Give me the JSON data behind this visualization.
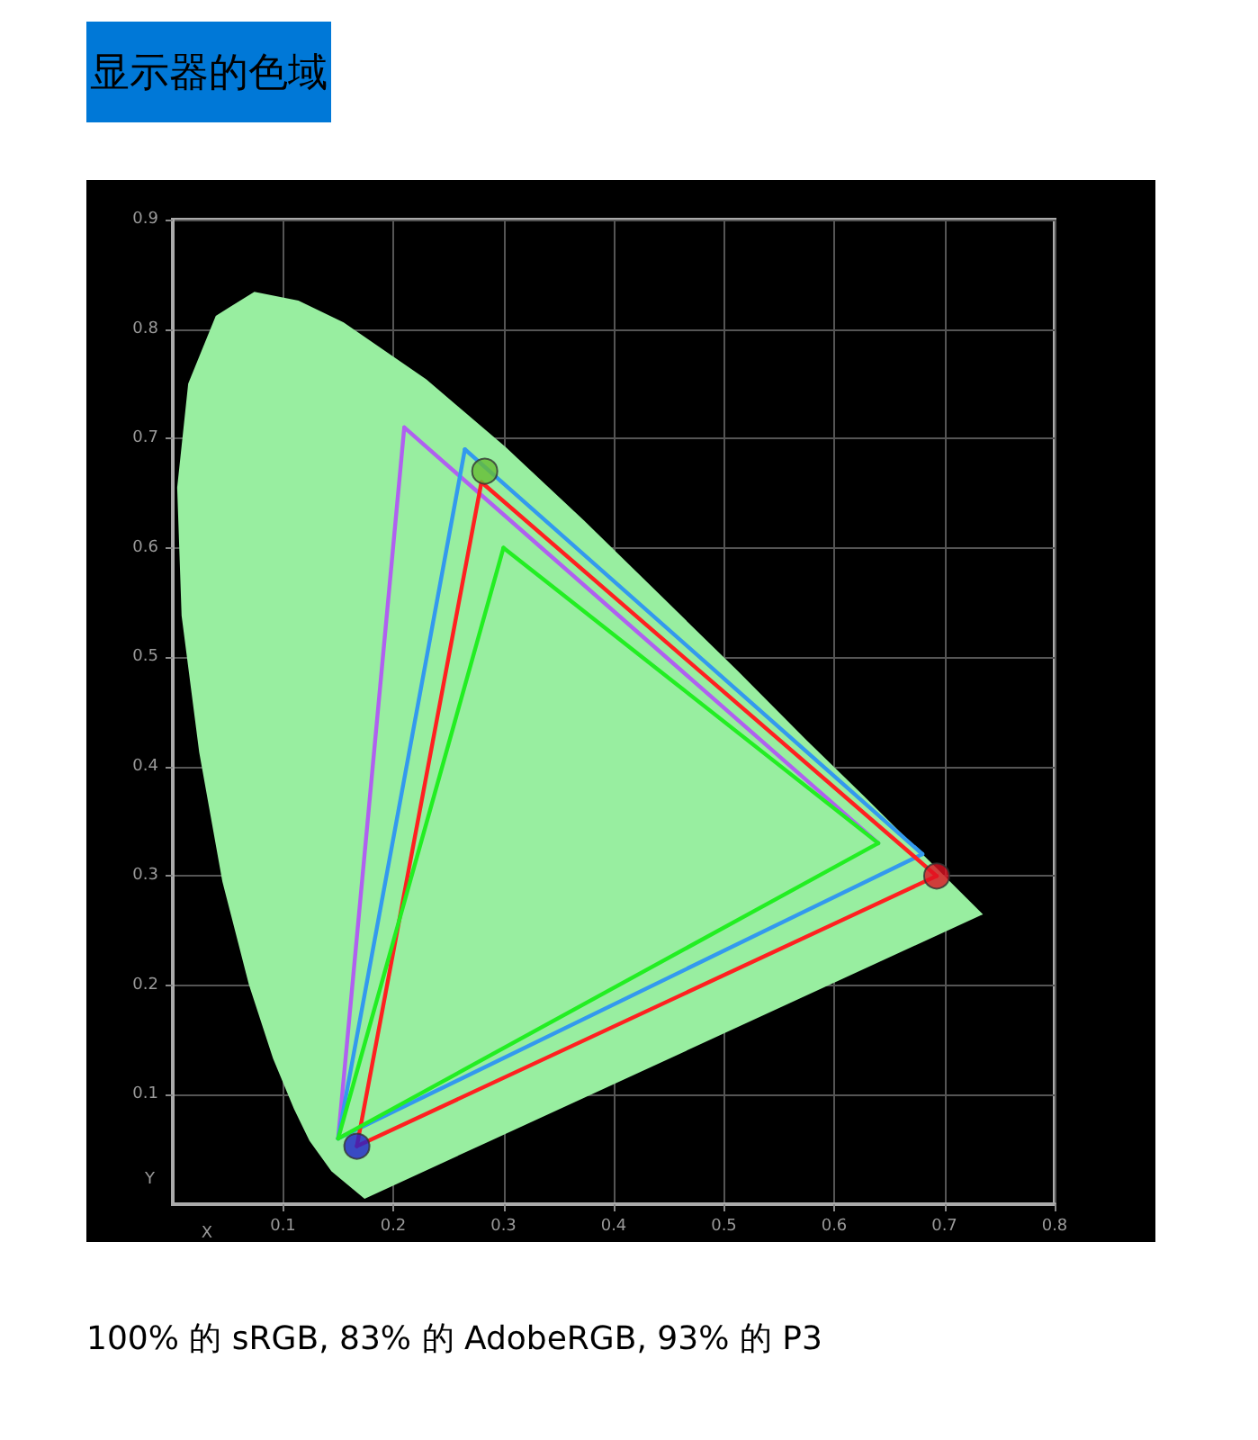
{
  "chart_data": {
    "type": "line",
    "title": "显示器的色域",
    "xlabel": "X",
    "ylabel": "Y",
    "xlim": [
      0,
      0.8
    ],
    "ylim": [
      0,
      0.9
    ],
    "xticks": [
      0.1,
      0.2,
      0.3,
      0.4,
      0.5,
      0.6,
      0.7,
      0.8
    ],
    "yticks": [
      0.1,
      0.2,
      0.3,
      0.4,
      0.5,
      0.6,
      0.7,
      0.8,
      0.9
    ],
    "grid": true,
    "line_style": "solid",
    "annotations": [
      "100% 的 sRGB, 83% 的 AdobeRGB, 93% 的 P3"
    ],
    "series": [
      {
        "type": "area",
        "color": "#98eea0",
        "marker": "none",
        "x": [
          0.174,
          0.144,
          0.124,
          0.11,
          0.091,
          0.069,
          0.045,
          0.024,
          0.008,
          0.004,
          0.014,
          0.039,
          0.074,
          0.114,
          0.155,
          0.23,
          0.302,
          0.373,
          0.444,
          0.513,
          0.575,
          0.627,
          0.692,
          0.719,
          0.735,
          0.174
        ],
        "values": [
          0.005,
          0.03,
          0.058,
          0.087,
          0.133,
          0.201,
          0.295,
          0.413,
          0.538,
          0.655,
          0.75,
          0.812,
          0.834,
          0.826,
          0.806,
          0.754,
          0.692,
          0.625,
          0.555,
          0.487,
          0.424,
          0.373,
          0.308,
          0.281,
          0.265,
          0.005
        ]
      },
      {
        "color": "#b060f0",
        "marker": "none",
        "x": [
          0.15,
          0.21
        ],
        "values": [
          0.06,
          0.71
        ]
      },
      {
        "color": "#b060f0",
        "marker": "none",
        "x": [
          0.21,
          0.64
        ],
        "values": [
          0.71,
          0.33
        ]
      },
      {
        "color": "#3399ee",
        "marker": "none",
        "x": [
          0.15,
          0.265
        ],
        "values": [
          0.06,
          0.69
        ]
      },
      {
        "color": "#3399ee",
        "marker": "none",
        "x": [
          0.15,
          0.68
        ],
        "values": [
          0.06,
          0.32
        ]
      },
      {
        "color": "#3399ee",
        "marker": "none",
        "x": [
          0.265,
          0.68
        ],
        "values": [
          0.69,
          0.32
        ]
      },
      {
        "color": "#ff2020",
        "marker": "none",
        "x": [
          0.167,
          0.28
        ],
        "values": [
          0.053,
          0.66
        ]
      },
      {
        "color": "#ff2020",
        "marker": "none",
        "x": [
          0.167,
          0.693
        ],
        "values": [
          0.053,
          0.3
        ]
      },
      {
        "color": "#ff2020",
        "marker": "none",
        "x": [
          0.28,
          0.693
        ],
        "values": [
          0.66,
          0.3
        ]
      },
      {
        "color": "#22ee22",
        "marker": "none",
        "x": [
          0.15,
          0.3
        ],
        "values": [
          0.06,
          0.6
        ]
      },
      {
        "color": "#22ee22",
        "marker": "none",
        "x": [
          0.15,
          0.64
        ],
        "values": [
          0.06,
          0.33
        ]
      },
      {
        "color": "#22ee22",
        "marker": "none",
        "x": [
          0.3,
          0.64
        ],
        "values": [
          0.6,
          0.33
        ]
      },
      {
        "type": "scatter",
        "marker": "circle",
        "colors": [
          "#dd1122",
          "#66bb33",
          "#2222cc"
        ],
        "x": [
          0.693,
          0.283,
          0.167
        ],
        "values": [
          0.3,
          0.67,
          0.053
        ]
      }
    ]
  }
}
